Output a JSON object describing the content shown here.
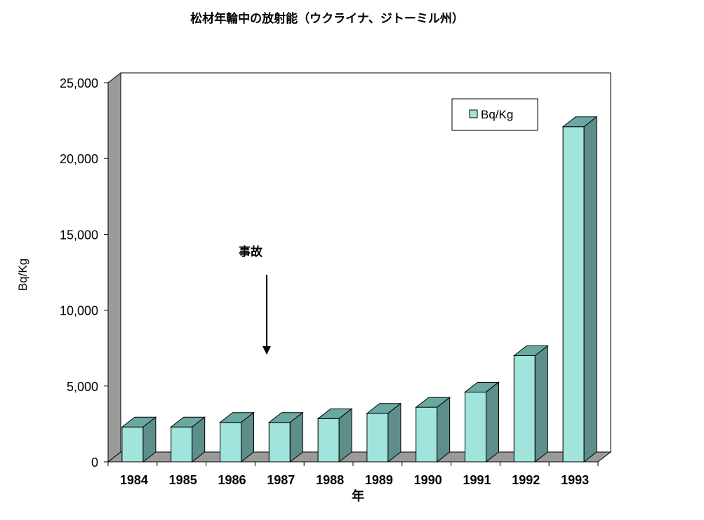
{
  "chart_data": {
    "type": "bar",
    "style": "3d-column",
    "title": "松材年輪中の放射能（ウクライナ、ジトーミル州）",
    "xlabel": "年",
    "ylabel": "Bq/Kg",
    "categories": [
      "1984",
      "1985",
      "1986",
      "1987",
      "1988",
      "1989",
      "1990",
      "1991",
      "1992",
      "1993"
    ],
    "series": [
      {
        "name": "Bq/Kg",
        "values": [
          2300,
          2300,
          2600,
          2600,
          2850,
          3200,
          3600,
          4600,
          7000,
          22100
        ]
      }
    ],
    "ylim": [
      0,
      25000
    ],
    "yticks": [
      0,
      5000,
      10000,
      15000,
      20000,
      25000
    ],
    "ytick_labels": [
      "0",
      "5,000",
      "10,000",
      "15,000",
      "20,000",
      "25,000"
    ],
    "grid": false,
    "legend": {
      "position": "top-right",
      "entries": [
        "Bq/Kg"
      ]
    },
    "annotations": [
      {
        "text": "事故",
        "x": "1987",
        "arrow": "down"
      }
    ],
    "colors": {
      "bar_front": "#a0e4dc",
      "bar_top": "#6aa8a2",
      "bar_side": "#5e8e8a",
      "wall": "#9a9a9a",
      "floor": "#9a9a9a",
      "plot_background": "#ffffff",
      "outline": "#000000"
    }
  }
}
